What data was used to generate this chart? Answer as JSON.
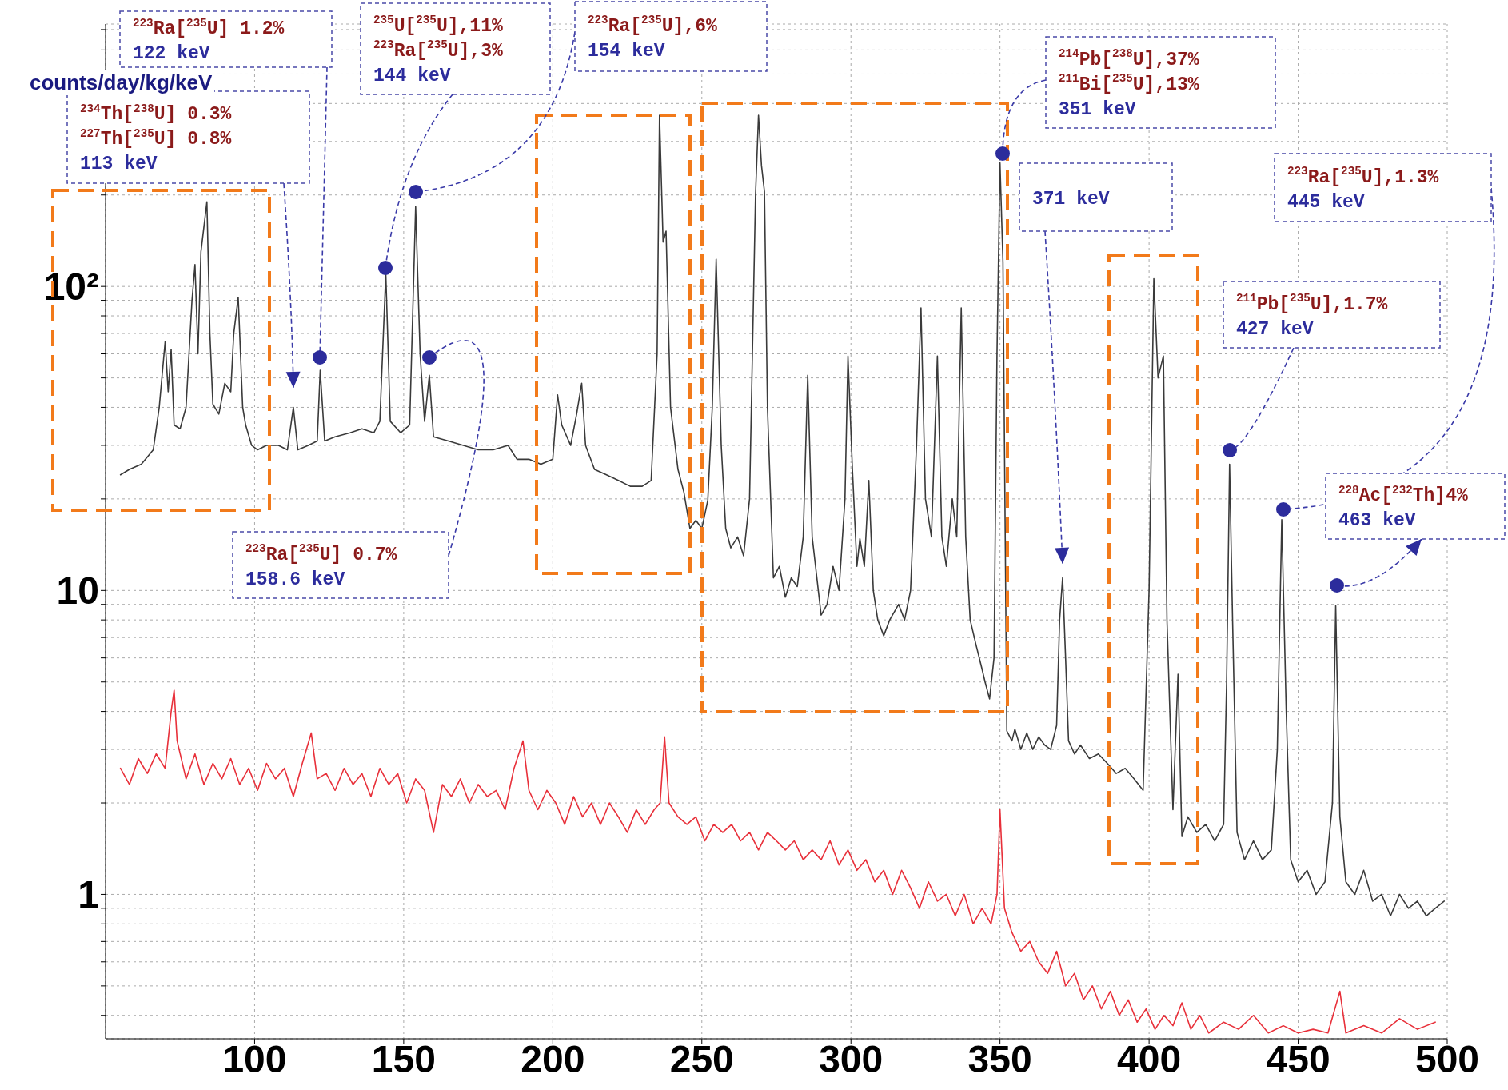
{
  "chart_data": {
    "type": "line",
    "ylabel": "counts/day/kg/keV",
    "xlim": [
      50,
      500
    ],
    "xticks": [
      100,
      150,
      200,
      250,
      300,
      350,
      400,
      450,
      500
    ],
    "ylim": [
      0.335,
      730
    ],
    "log": "y",
    "grid": true,
    "yticks": [
      {
        "value": 0.4,
        "label": null
      },
      {
        "value": 0.5,
        "label": null
      },
      {
        "value": 0.6,
        "label": null
      },
      {
        "value": 0.7,
        "label": null
      },
      {
        "value": 0.8,
        "label": null
      },
      {
        "value": 0.9,
        "label": null
      },
      1,
      {
        "value": 2,
        "label": null
      },
      {
        "value": 3,
        "label": null
      },
      {
        "value": 4,
        "label": null
      },
      {
        "value": 5,
        "label": null
      },
      {
        "value": 6,
        "label": null
      },
      {
        "value": 7,
        "label": null
      },
      {
        "value": 8,
        "label": null
      },
      {
        "value": 9,
        "label": null
      },
      10,
      {
        "value": 20,
        "label": null
      },
      {
        "value": 30,
        "label": null
      },
      {
        "value": 40,
        "label": null
      },
      {
        "value": 50,
        "label": null
      },
      {
        "value": 60,
        "label": null
      },
      {
        "value": 70,
        "label": null
      },
      {
        "value": 80,
        "label": null
      },
      {
        "value": 90,
        "label": null
      },
      {
        "value": 100,
        "label": "10²"
      },
      {
        "value": 200,
        "label": null
      },
      {
        "value": 300,
        "label": null
      },
      {
        "value": 400,
        "label": null
      },
      {
        "value": 500,
        "label": null
      },
      {
        "value": 600,
        "label": null
      },
      {
        "value": 700,
        "label": null
      }
    ],
    "series": [
      {
        "color": "#3a3a3a",
        "x": [
          55,
          58,
          62,
          66,
          68,
          70,
          71,
          72,
          73,
          75,
          77,
          79,
          80,
          81,
          82,
          84,
          85,
          86,
          88,
          90,
          92,
          93,
          94.5,
          96,
          97,
          99,
          101,
          104,
          108,
          111,
          113,
          114.5,
          118,
          121,
          122,
          123.5,
          127,
          132,
          136,
          140,
          142,
          144,
          145.5,
          149,
          152,
          154,
          155.5,
          157,
          158.6,
          160,
          165,
          170,
          175,
          180,
          185,
          188,
          192,
          196,
          200,
          201.6,
          203,
          206,
          208,
          209.7,
          211,
          214,
          218,
          222,
          226,
          230,
          233,
          235,
          235.8,
          237,
          238,
          239.5,
          242,
          244,
          246,
          248,
          250,
          252,
          253.5,
          254.8,
          256.5,
          258,
          259.7,
          262,
          264,
          266,
          268,
          269,
          270,
          271,
          272,
          274,
          276,
          278,
          280,
          282,
          284,
          285.5,
          287,
          290,
          292,
          294,
          296,
          298,
          299,
          300.5,
          302,
          303,
          304.5,
          306,
          307.5,
          309,
          311,
          313,
          316,
          318,
          320,
          322,
          323.5,
          325,
          327,
          329,
          330.5,
          332,
          334,
          335.5,
          337,
          338.5,
          340,
          342,
          344,
          345,
          346.5,
          348,
          349,
          350,
          351,
          352.3,
          354,
          355,
          357,
          359,
          361,
          363,
          365,
          367,
          369,
          370,
          371,
          372,
          373,
          375,
          377,
          380,
          383,
          386,
          389,
          392,
          395,
          398,
          400,
          401.6,
          403,
          404.8,
          406,
          408,
          409.7,
          411,
          413,
          416,
          419,
          422,
          425,
          426,
          427,
          428,
          429.5,
          432,
          435,
          438,
          441,
          443,
          444.5,
          446,
          447.5,
          450,
          453,
          456,
          459,
          461.5,
          462.6,
          464,
          466,
          469,
          472,
          475,
          478,
          481,
          484,
          487,
          490,
          493,
          496,
          499
        ],
        "values": [
          24,
          25,
          26,
          29,
          40,
          66,
          45,
          62,
          35,
          34,
          40,
          90,
          118,
          60,
          130,
          190,
          70,
          41,
          38,
          48,
          45,
          70,
          92,
          40,
          35,
          30,
          29,
          30,
          30,
          29,
          40,
          29,
          30,
          31,
          53,
          31,
          32,
          33,
          34,
          33,
          36,
          110,
          36,
          33,
          35,
          183,
          60,
          36,
          51,
          32,
          31,
          30,
          29,
          29,
          30,
          27,
          27,
          26,
          27,
          44,
          35,
          30,
          38,
          48,
          30,
          25,
          24,
          23,
          22,
          22,
          23,
          60,
          366,
          140,
          152,
          40,
          25,
          21,
          16,
          17,
          16,
          19.8,
          40,
          123,
          30,
          16,
          13.8,
          15,
          13,
          20,
          200,
          366,
          250,
          205,
          40,
          11,
          12,
          9.5,
          11,
          10.3,
          15,
          51,
          15,
          8.3,
          9,
          12,
          10,
          20,
          59,
          25,
          12,
          14.8,
          12,
          23,
          10,
          8,
          7.1,
          8,
          9,
          8,
          10,
          30,
          85,
          20,
          15,
          59,
          15,
          12,
          20,
          15,
          85,
          15,
          8,
          6.6,
          5.5,
          5,
          4.4,
          6,
          60,
          255,
          120,
          3.45,
          3.2,
          3.5,
          3,
          3.4,
          3,
          3.3,
          3.1,
          3,
          3.6,
          8,
          11,
          6,
          3.2,
          2.9,
          3.1,
          2.8,
          2.9,
          2.7,
          2.5,
          2.6,
          2.4,
          2.2,
          10,
          106,
          50,
          59,
          8,
          1.9,
          5.3,
          1.55,
          1.8,
          1.6,
          1.7,
          1.5,
          1.7,
          5,
          26,
          8,
          1.6,
          1.3,
          1.5,
          1.3,
          1.4,
          3,
          17.1,
          4,
          1.3,
          1.1,
          1.2,
          1,
          1.1,
          2,
          8.9,
          1.8,
          1.1,
          1,
          1.2,
          0.95,
          1,
          0.85,
          1,
          0.9,
          0.95,
          0.85,
          0.9,
          0.95
        ]
      },
      {
        "color": "#e8303a",
        "x": [
          55,
          58,
          61,
          64,
          67,
          70,
          72,
          73,
          74,
          77,
          80,
          83,
          86,
          89,
          92,
          95,
          98,
          101,
          104,
          107,
          110,
          113,
          116,
          119,
          121,
          124,
          127,
          130,
          133,
          136,
          139,
          142,
          145,
          148,
          151,
          154,
          157,
          160,
          163,
          166,
          169,
          172,
          175,
          178,
          181,
          184,
          187,
          190,
          192,
          195,
          198,
          201,
          204,
          207,
          210,
          213,
          216,
          219,
          222,
          225,
          228,
          231,
          234,
          236,
          237.5,
          239,
          242,
          245,
          248,
          251,
          254,
          257,
          260,
          263,
          266,
          269,
          272,
          275,
          278,
          281,
          284,
          287,
          290,
          293,
          296,
          299,
          302,
          305,
          308,
          311,
          314,
          317,
          320,
          323,
          326,
          329,
          332,
          335,
          338,
          341,
          344,
          347,
          349,
          350,
          351.5,
          354,
          357,
          360,
          363,
          366,
          369,
          372,
          375,
          378,
          381,
          384,
          387,
          390,
          393,
          396,
          399,
          402,
          405,
          408,
          411,
          414,
          417,
          420,
          425,
          430,
          435,
          440,
          445,
          450,
          455,
          460,
          464,
          466,
          472,
          478,
          484,
          490,
          496
        ],
        "values": [
          2.6,
          2.3,
          2.8,
          2.5,
          2.9,
          2.6,
          4,
          4.7,
          3.2,
          2.4,
          2.9,
          2.3,
          2.7,
          2.4,
          2.8,
          2.3,
          2.6,
          2.2,
          2.7,
          2.4,
          2.6,
          2.1,
          2.7,
          3.4,
          2.4,
          2.5,
          2.2,
          2.6,
          2.3,
          2.5,
          2.1,
          2.6,
          2.3,
          2.5,
          2,
          2.4,
          2.2,
          1.6,
          2.3,
          2.1,
          2.4,
          2,
          2.3,
          2.1,
          2.2,
          1.9,
          2.6,
          3.2,
          2.2,
          1.9,
          2.2,
          2,
          1.7,
          2.1,
          1.8,
          2,
          1.7,
          2,
          1.8,
          1.6,
          1.9,
          1.7,
          1.9,
          2,
          3.3,
          2,
          1.8,
          1.7,
          1.8,
          1.5,
          1.7,
          1.6,
          1.7,
          1.5,
          1.6,
          1.4,
          1.6,
          1.5,
          1.4,
          1.5,
          1.3,
          1.4,
          1.3,
          1.5,
          1.25,
          1.4,
          1.2,
          1.3,
          1.1,
          1.2,
          1,
          1.2,
          1.05,
          0.9,
          1.1,
          0.95,
          1,
          0.85,
          1,
          0.8,
          0.9,
          0.8,
          1,
          1.9,
          0.9,
          0.75,
          0.65,
          0.7,
          0.6,
          0.55,
          0.65,
          0.5,
          0.55,
          0.45,
          0.5,
          0.42,
          0.48,
          0.4,
          0.45,
          0.38,
          0.42,
          0.36,
          0.4,
          0.37,
          0.44,
          0.36,
          0.4,
          0.35,
          0.38,
          0.36,
          0.4,
          0.35,
          0.37,
          0.35,
          0.36,
          0.35,
          0.48,
          0.35,
          0.37,
          0.35,
          0.39,
          0.36,
          0.38
        ]
      }
    ],
    "annotations": [
      "$^{223}$Ra[$^{235}$U] 1.2%\n122 keV",
      "$^{234}$Th[$^{238}$U] 0.3%\n$^{227}$Th[$^{235}$U] 0.8%\n113 keV",
      "$^{235}$U[$^{235}$U],11%\n$^{223}$Ra[$^{235}$U],3%\n144 keV",
      "$^{223}$Ra[$^{235}$U],6%\n154 keV",
      "$^{223}$Ra[$^{235}$U] 0.7%\n158.6 keV",
      "$^{214}$Pb[$^{238}$U],37%\n$^{211}$Bi[$^{235}$U],13%\n351 keV",
      "371 keV",
      "$^{223}$Ra[$^{235}$U],1.3%\n445 keV",
      "$^{211}$Pb[$^{235}$U],1.7%\n427 keV",
      "$^{228}$Ac[$^{232}$Th]4%\n463 keV"
    ]
  }
}
